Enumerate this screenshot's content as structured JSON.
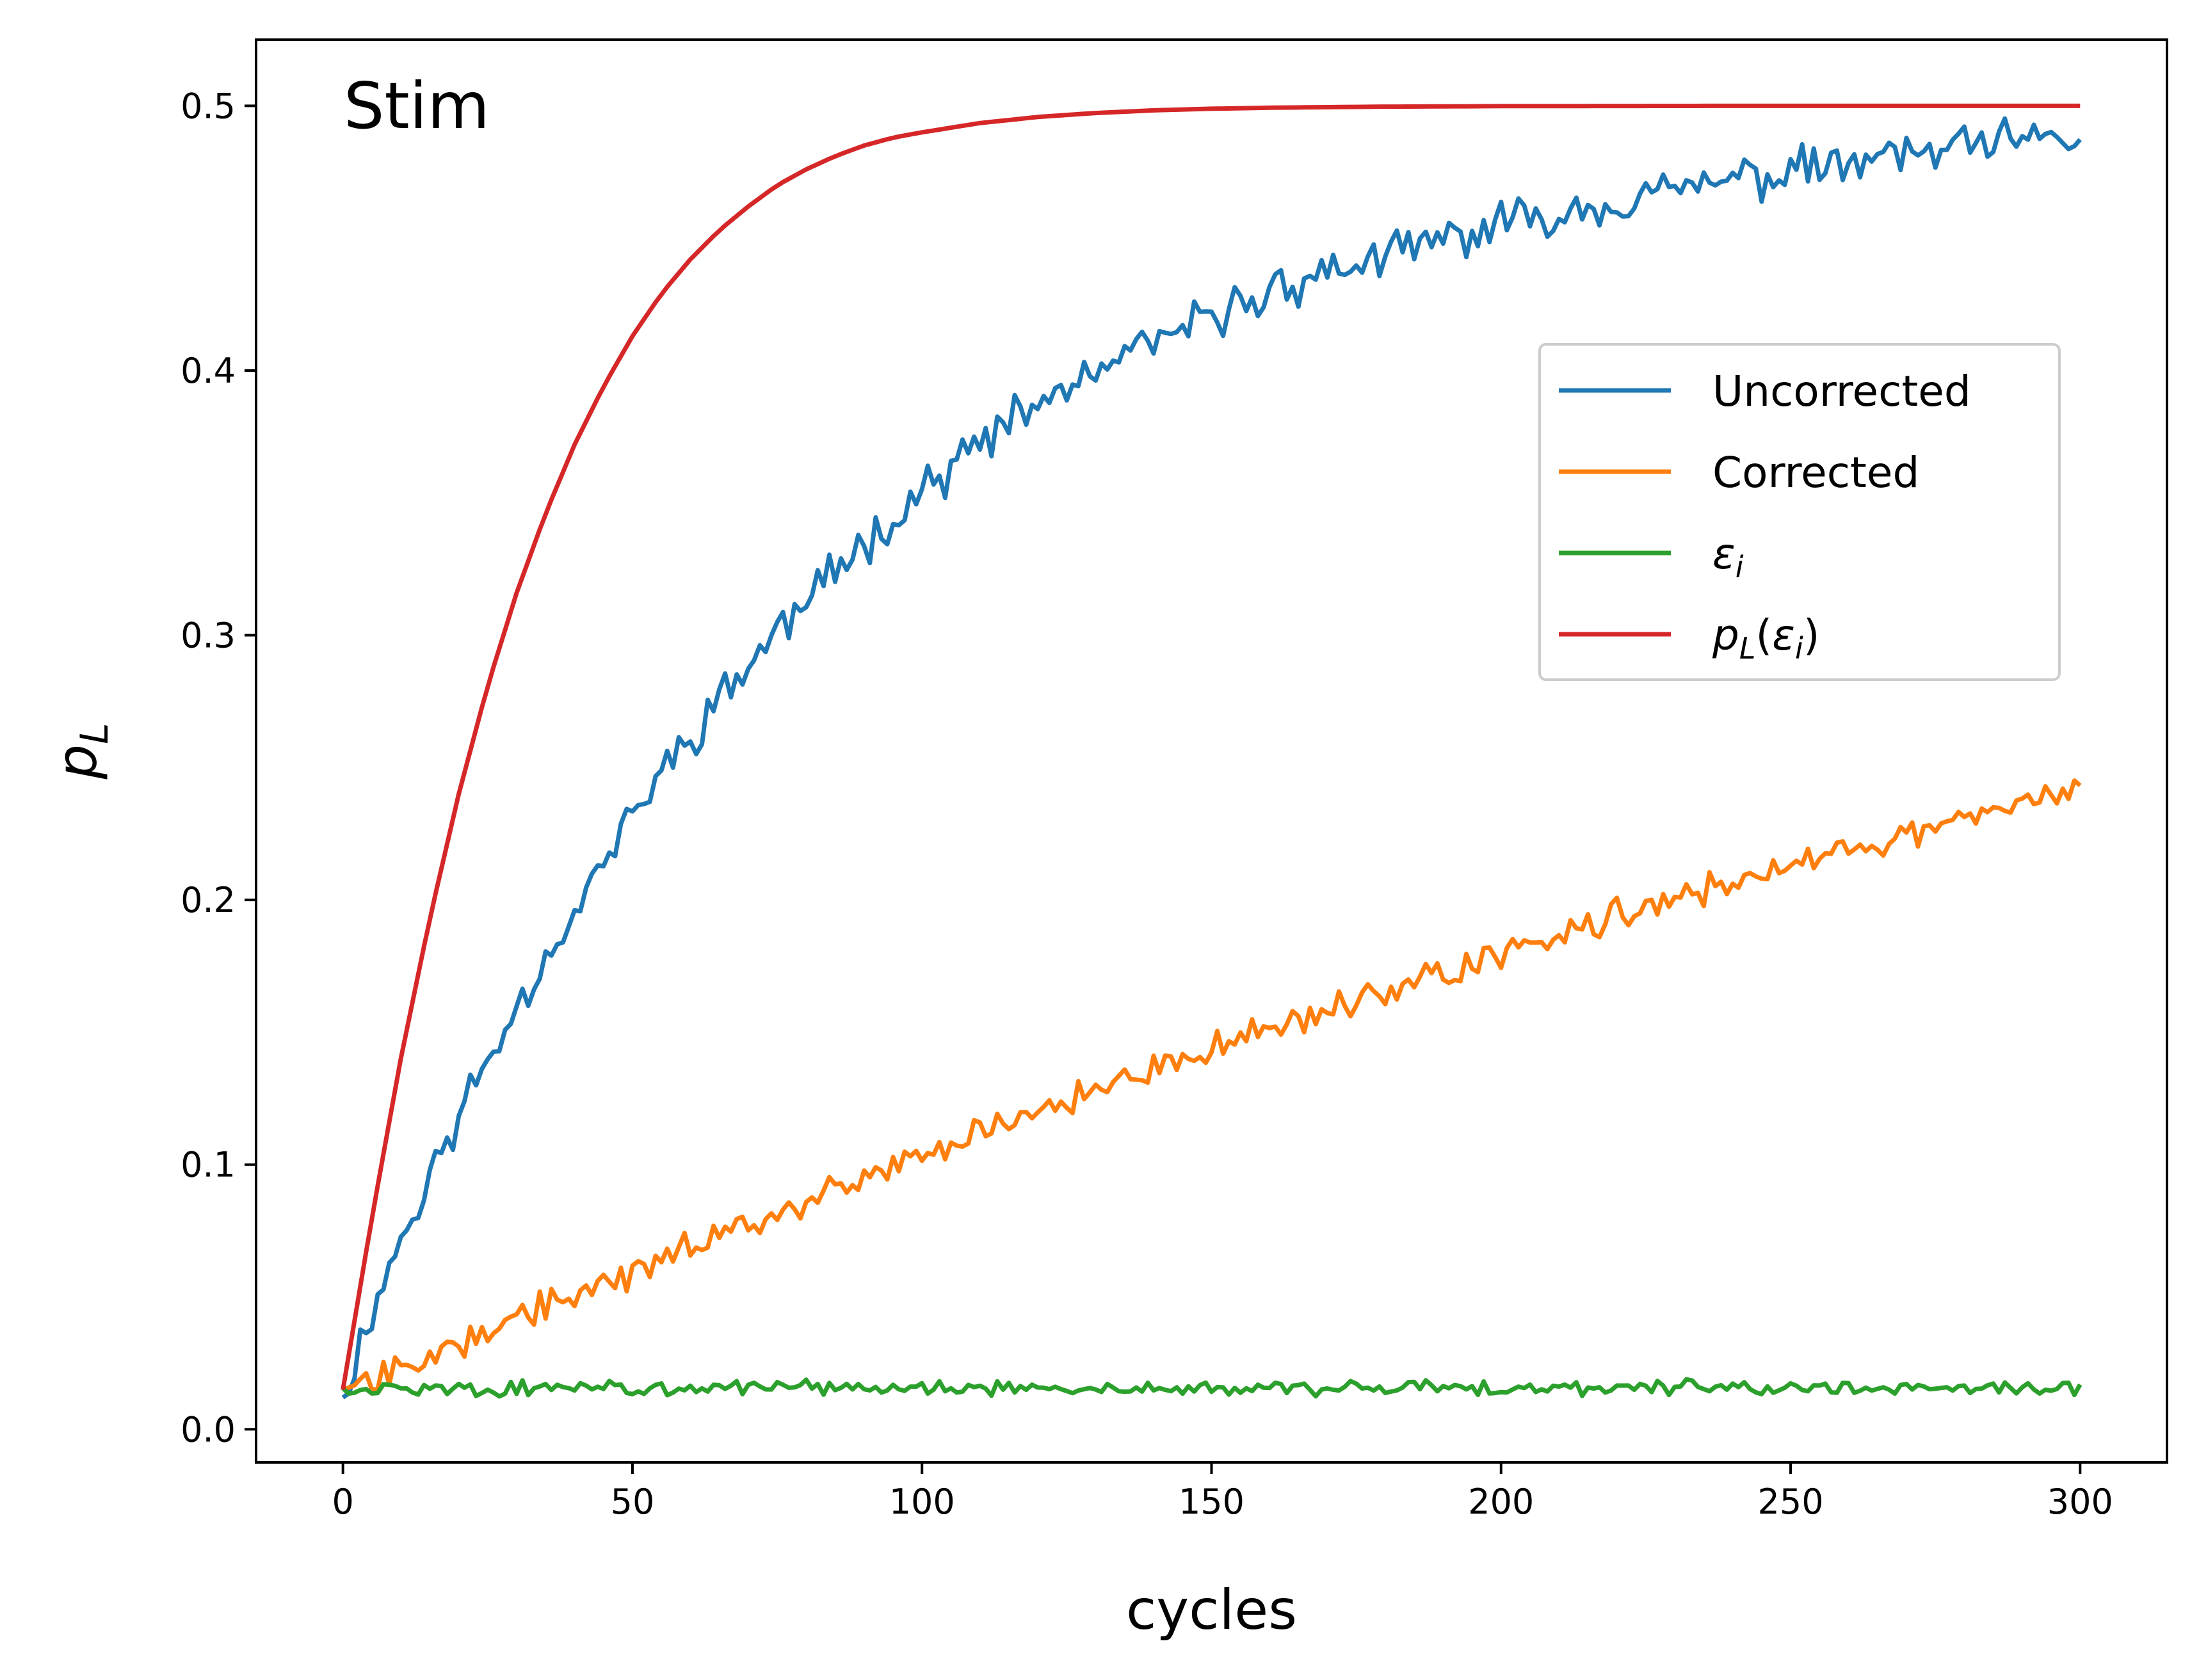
{
  "chart_data": {
    "type": "line",
    "title": "",
    "annotation": "Stim",
    "xlabel": "cycles",
    "ylabel": "p_L",
    "xlim": [
      -15,
      315
    ],
    "ylim": [
      -0.0125,
      0.525
    ],
    "xticks": [
      0,
      50,
      100,
      150,
      200,
      250,
      300
    ],
    "xtick_labels": [
      "0",
      "50",
      "100",
      "150",
      "200",
      "250",
      "300"
    ],
    "yticks": [
      0.0,
      0.1,
      0.2,
      0.3,
      0.4,
      0.5
    ],
    "ytick_labels": [
      "0.0",
      "0.1",
      "0.2",
      "0.3",
      "0.4",
      "0.5"
    ],
    "grid": false,
    "legend_position": "center-right",
    "colors": {
      "uncorrected": "#1f77b4",
      "corrected": "#ff7f0e",
      "eps": "#2ca02c",
      "pl_eps": "#d62728"
    },
    "series": [
      {
        "name": "Uncorrected",
        "legend_main": "Uncorrected",
        "color": "#1f77b4",
        "x": [
          0,
          5,
          10,
          15,
          20,
          25,
          30,
          35,
          40,
          45,
          50,
          55,
          60,
          65,
          70,
          75,
          80,
          85,
          90,
          95,
          100,
          110,
          120,
          130,
          140,
          150,
          160,
          170,
          180,
          190,
          200,
          210,
          220,
          230,
          240,
          250,
          260,
          270,
          280,
          290,
          300
        ],
        "values": [
          0.012,
          0.045,
          0.072,
          0.095,
          0.118,
          0.14,
          0.16,
          0.178,
          0.196,
          0.214,
          0.232,
          0.248,
          0.262,
          0.276,
          0.289,
          0.301,
          0.313,
          0.324,
          0.335,
          0.345,
          0.355,
          0.372,
          0.387,
          0.399,
          0.41,
          0.42,
          0.43,
          0.437,
          0.443,
          0.449,
          0.455,
          0.46,
          0.464,
          0.468,
          0.472,
          0.475,
          0.478,
          0.481,
          0.484,
          0.486,
          0.488
        ]
      },
      {
        "name": "Corrected",
        "legend_main": "Corrected",
        "color": "#ff7f0e",
        "x": [
          0,
          10,
          20,
          30,
          40,
          50,
          60,
          70,
          80,
          90,
          100,
          110,
          120,
          130,
          140,
          150,
          160,
          170,
          180,
          190,
          200,
          210,
          220,
          230,
          240,
          250,
          260,
          270,
          280,
          290,
          300
        ],
        "values": [
          0.015,
          0.024,
          0.033,
          0.042,
          0.051,
          0.06,
          0.069,
          0.078,
          0.087,
          0.095,
          0.103,
          0.112,
          0.12,
          0.128,
          0.136,
          0.143,
          0.151,
          0.158,
          0.166,
          0.173,
          0.18,
          0.187,
          0.194,
          0.2,
          0.207,
          0.213,
          0.219,
          0.225,
          0.231,
          0.237,
          0.242
        ]
      },
      {
        "name": "ε_i",
        "legend_main": "ε",
        "legend_sub": "i",
        "color": "#2ca02c",
        "x": [
          0,
          300
        ],
        "values": [
          0.0155,
          0.0155
        ]
      },
      {
        "name": "p_L(ε_i)",
        "legend_main": "p",
        "legend_sub": "L",
        "legend_paren_open": "(",
        "legend_inner": "ε",
        "legend_inner_sub": "i",
        "legend_paren_close": ")",
        "color": "#d62728",
        "x": [
          0,
          5,
          10,
          15,
          20,
          25,
          30,
          35,
          40,
          45,
          50,
          55,
          60,
          65,
          70,
          75,
          80,
          85,
          90,
          95,
          100,
          110,
          120,
          130,
          140,
          150,
          160,
          170,
          180,
          190,
          200,
          220,
          240,
          260,
          280,
          300
        ],
        "values": [
          0.015,
          0.08,
          0.14,
          0.193,
          0.24,
          0.281,
          0.316,
          0.346,
          0.372,
          0.394,
          0.413,
          0.429,
          0.442,
          0.453,
          0.462,
          0.47,
          0.476,
          0.481,
          0.485,
          0.488,
          0.49,
          0.4935,
          0.4958,
          0.4973,
          0.4983,
          0.4989,
          0.4993,
          0.4995,
          0.4997,
          0.4998,
          0.4999,
          0.49995,
          0.5,
          0.5,
          0.5,
          0.5
        ]
      }
    ]
  }
}
